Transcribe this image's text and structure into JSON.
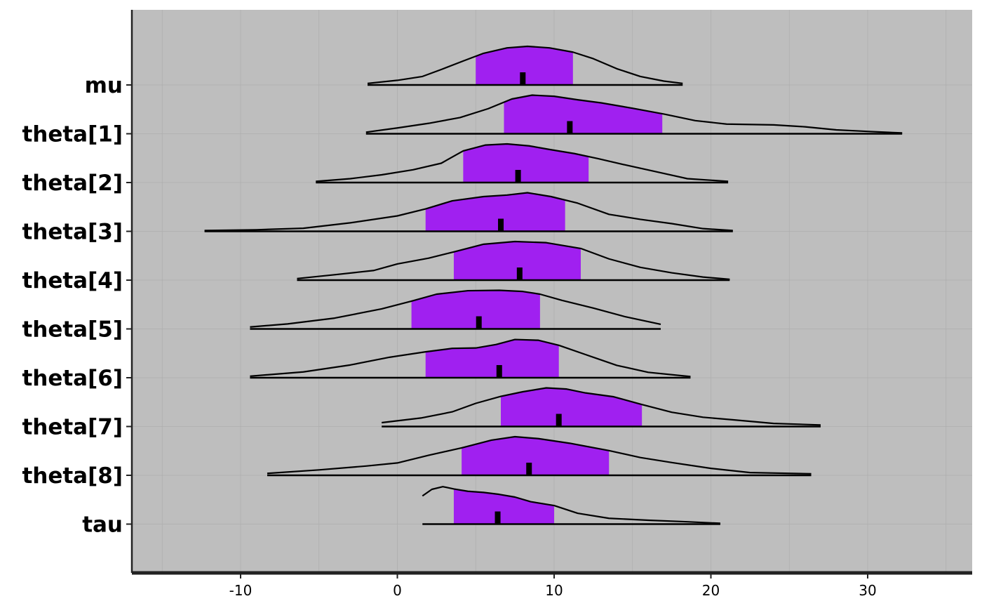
{
  "chart_data": {
    "type": "area",
    "x_ticks": [
      -10,
      0,
      10,
      20,
      30
    ],
    "xlim": [
      -16.8,
      36.8
    ],
    "grid": true,
    "colors": {
      "panel": "#bebebe",
      "interval_fill": "#a020f0",
      "line": "#000000"
    },
    "parameters": [
      "mu",
      "theta[1]",
      "theta[2]",
      "theta[3]",
      "theta[4]",
      "theta[5]",
      "theta[6]",
      "theta[7]",
      "theta[8]",
      "tau"
    ],
    "series": [
      {
        "name": "mu",
        "median": 8.0,
        "interval": [
          5.0,
          11.2
        ],
        "range": [
          -1.9,
          18.2
        ],
        "density": [
          [
            -1.9,
            0.04
          ],
          [
            0,
            0.12
          ],
          [
            1.6,
            0.22
          ],
          [
            2.8,
            0.4
          ],
          [
            4.2,
            0.62
          ],
          [
            5.5,
            0.82
          ],
          [
            7,
            0.96
          ],
          [
            8.3,
            1.0
          ],
          [
            9.7,
            0.96
          ],
          [
            11.2,
            0.85
          ],
          [
            12.5,
            0.68
          ],
          [
            14,
            0.42
          ],
          [
            15.5,
            0.22
          ],
          [
            17,
            0.1
          ],
          [
            18.2,
            0.04
          ]
        ]
      },
      {
        "name": "theta[1]",
        "median": 11.0,
        "interval": [
          6.8,
          16.9
        ],
        "range": [
          -2.0,
          32.2
        ],
        "density": [
          [
            -2.0,
            0.04
          ],
          [
            0,
            0.15
          ],
          [
            2,
            0.27
          ],
          [
            4,
            0.42
          ],
          [
            5.8,
            0.65
          ],
          [
            7.3,
            0.9
          ],
          [
            8.6,
            1.0
          ],
          [
            10,
            0.97
          ],
          [
            11.5,
            0.88
          ],
          [
            13,
            0.8
          ],
          [
            15,
            0.66
          ],
          [
            17,
            0.51
          ],
          [
            19,
            0.34
          ],
          [
            21,
            0.25
          ],
          [
            24,
            0.23
          ],
          [
            26,
            0.18
          ],
          [
            28,
            0.1
          ],
          [
            30,
            0.06
          ],
          [
            32.2,
            0.02
          ]
        ]
      },
      {
        "name": "theta[2]",
        "median": 7.7,
        "interval": [
          4.2,
          12.2
        ],
        "range": [
          -5.2,
          21.1
        ],
        "density": [
          [
            -5.2,
            0.03
          ],
          [
            -3,
            0.1
          ],
          [
            -1,
            0.2
          ],
          [
            1,
            0.33
          ],
          [
            2.8,
            0.5
          ],
          [
            4.2,
            0.82
          ],
          [
            5.6,
            0.97
          ],
          [
            7,
            1.0
          ],
          [
            8.4,
            0.95
          ],
          [
            9.8,
            0.85
          ],
          [
            11.3,
            0.75
          ],
          [
            12.8,
            0.62
          ],
          [
            14.5,
            0.46
          ],
          [
            16.5,
            0.28
          ],
          [
            18.5,
            0.1
          ],
          [
            21.1,
            0.03
          ]
        ]
      },
      {
        "name": "theta[3]",
        "median": 6.6,
        "interval": [
          1.8,
          10.7
        ],
        "range": [
          -12.3,
          21.4
        ],
        "density": [
          [
            -12.3,
            0.02
          ],
          [
            -9,
            0.04
          ],
          [
            -6,
            0.08
          ],
          [
            -3,
            0.22
          ],
          [
            0,
            0.4
          ],
          [
            1.8,
            0.58
          ],
          [
            3.5,
            0.79
          ],
          [
            5.5,
            0.9
          ],
          [
            7,
            0.94
          ],
          [
            8.3,
            1.0
          ],
          [
            9.8,
            0.9
          ],
          [
            11.5,
            0.73
          ],
          [
            13.5,
            0.44
          ],
          [
            15.5,
            0.31
          ],
          [
            17.5,
            0.2
          ],
          [
            19.5,
            0.07
          ],
          [
            21.4,
            0.02
          ]
        ]
      },
      {
        "name": "theta[4]",
        "median": 7.8,
        "interval": [
          3.6,
          11.7
        ],
        "range": [
          -6.4,
          21.2
        ],
        "density": [
          [
            -6.4,
            0.04
          ],
          [
            -4,
            0.14
          ],
          [
            -1.5,
            0.25
          ],
          [
            0,
            0.42
          ],
          [
            2,
            0.57
          ],
          [
            3.6,
            0.73
          ],
          [
            5.5,
            0.93
          ],
          [
            7.5,
            1.0
          ],
          [
            9.5,
            0.97
          ],
          [
            11.7,
            0.82
          ],
          [
            13.5,
            0.55
          ],
          [
            15.5,
            0.33
          ],
          [
            17.5,
            0.19
          ],
          [
            19.5,
            0.08
          ],
          [
            21.2,
            0.02
          ]
        ]
      },
      {
        "name": "theta[5]",
        "median": 5.2,
        "interval": [
          0.9,
          9.1
        ],
        "range": [
          -9.4,
          16.8
        ],
        "density": [
          [
            -9.4,
            0.05
          ],
          [
            -7,
            0.13
          ],
          [
            -4,
            0.28
          ],
          [
            -1,
            0.52
          ],
          [
            0.9,
            0.72
          ],
          [
            2.5,
            0.9
          ],
          [
            4.5,
            0.99
          ],
          [
            6.5,
            1.0
          ],
          [
            8,
            0.97
          ],
          [
            9.1,
            0.9
          ],
          [
            10.5,
            0.74
          ],
          [
            12.5,
            0.54
          ],
          [
            14.5,
            0.32
          ],
          [
            16.8,
            0.12
          ]
        ]
      },
      {
        "name": "theta[6]",
        "median": 6.5,
        "interval": [
          1.8,
          10.3
        ],
        "range": [
          -9.4,
          18.7
        ],
        "density": [
          [
            -9.4,
            0.04
          ],
          [
            -6,
            0.15
          ],
          [
            -3,
            0.33
          ],
          [
            -0.5,
            0.53
          ],
          [
            1.8,
            0.67
          ],
          [
            3.5,
            0.76
          ],
          [
            5,
            0.77
          ],
          [
            6.3,
            0.86
          ],
          [
            7.5,
            0.99
          ],
          [
            9,
            0.97
          ],
          [
            10.3,
            0.84
          ],
          [
            12,
            0.6
          ],
          [
            14,
            0.32
          ],
          [
            16,
            0.14
          ],
          [
            18.7,
            0.03
          ]
        ]
      },
      {
        "name": "theta[7]",
        "median": 10.3,
        "interval": [
          6.6,
          15.6
        ],
        "range": [
          -1.0,
          27.0
        ],
        "density": [
          [
            -1.0,
            0.1
          ],
          [
            1.5,
            0.22
          ],
          [
            3.5,
            0.38
          ],
          [
            5,
            0.6
          ],
          [
            6.6,
            0.78
          ],
          [
            8,
            0.9
          ],
          [
            9.5,
            1.0
          ],
          [
            10.8,
            0.97
          ],
          [
            12,
            0.87
          ],
          [
            13.8,
            0.77
          ],
          [
            15.6,
            0.57
          ],
          [
            17.5,
            0.37
          ],
          [
            19.5,
            0.24
          ],
          [
            21.5,
            0.17
          ],
          [
            24,
            0.08
          ],
          [
            27.0,
            0.04
          ]
        ]
      },
      {
        "name": "theta[8]",
        "median": 8.4,
        "interval": [
          4.1,
          13.5
        ],
        "range": [
          -8.3,
          26.4
        ],
        "density": [
          [
            -8.3,
            0.05
          ],
          [
            -5,
            0.14
          ],
          [
            -2,
            0.24
          ],
          [
            0,
            0.32
          ],
          [
            2,
            0.52
          ],
          [
            4.1,
            0.71
          ],
          [
            6,
            0.91
          ],
          [
            7.5,
            1.0
          ],
          [
            9,
            0.95
          ],
          [
            11,
            0.83
          ],
          [
            13.5,
            0.64
          ],
          [
            15.5,
            0.46
          ],
          [
            17.5,
            0.33
          ],
          [
            20,
            0.18
          ],
          [
            22.5,
            0.07
          ],
          [
            26.4,
            0.04
          ]
        ]
      },
      {
        "name": "tau",
        "median": 6.4,
        "interval": [
          3.6,
          10.0
        ],
        "range": [
          1.6,
          20.6
        ],
        "density": [
          [
            1.6,
            0.73
          ],
          [
            2.2,
            0.9
          ],
          [
            2.9,
            0.97
          ],
          [
            3.6,
            0.91
          ],
          [
            4.5,
            0.85
          ],
          [
            5.5,
            0.82
          ],
          [
            6.5,
            0.77
          ],
          [
            7.5,
            0.7
          ],
          [
            8.5,
            0.58
          ],
          [
            10,
            0.48
          ],
          [
            11.5,
            0.28
          ],
          [
            13.5,
            0.15
          ],
          [
            16,
            0.1
          ],
          [
            18.5,
            0.06
          ],
          [
            20.6,
            0.02
          ]
        ]
      }
    ]
  }
}
